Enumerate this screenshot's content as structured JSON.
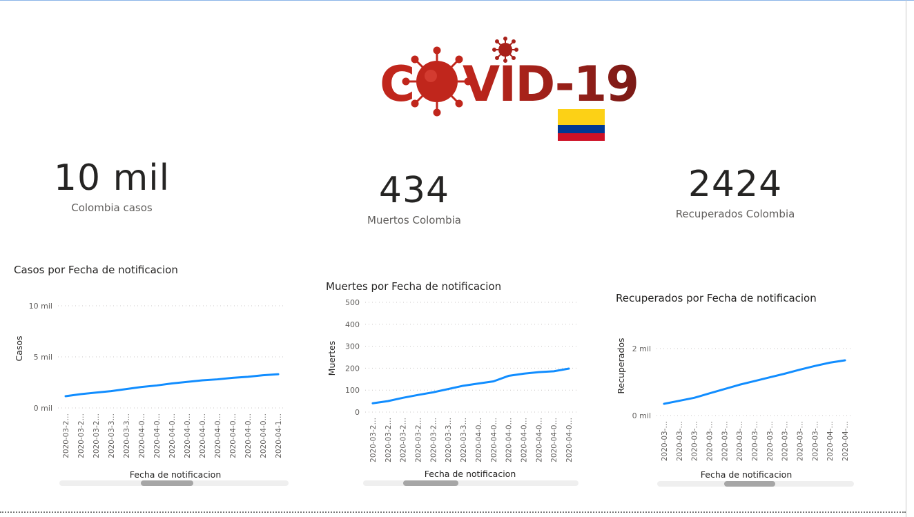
{
  "logo": {
    "text_left": "C",
    "text_right": "VID-19"
  },
  "kpis": [
    {
      "value": "10 mil",
      "label": "Colombia casos"
    },
    {
      "value": "434",
      "label": "Muertos Colombia"
    },
    {
      "value": "2424",
      "label": "Recuperados Colombia"
    }
  ],
  "colors": {
    "line": "#118dff",
    "virus": "#b4231c",
    "flag_yellow": "#fcd116",
    "flag_blue": "#003893",
    "flag_red": "#ce1126"
  },
  "chart_data": [
    {
      "type": "line",
      "title": "Casos por Fecha de notificacion",
      "xlabel": "Fecha de notificacion",
      "ylabel": "Casos",
      "ylim": [
        0,
        10000
      ],
      "yticks": [
        0,
        5000,
        10000
      ],
      "ytick_labels": [
        "0 mil",
        "5 mil",
        "10 mil"
      ],
      "x": [
        "2020-03-2…",
        "2020-03-2…",
        "2020-03-2…",
        "2020-03-3…",
        "2020-03-3…",
        "2020-04-0…",
        "2020-04-0…",
        "2020-04-0…",
        "2020-04-0…",
        "2020-04-0…",
        "2020-04-0…",
        "2020-04-0…",
        "2020-04-0…",
        "2020-04-0…",
        "2020-04-1…"
      ],
      "values": [
        1150,
        1350,
        1500,
        1650,
        1850,
        2050,
        2200,
        2400,
        2550,
        2700,
        2800,
        2950,
        3050,
        3200,
        3300
      ],
      "grid": true
    },
    {
      "type": "line",
      "title": "Muertes por Fecha de notificacion",
      "xlabel": "Fecha de notificacion",
      "ylabel": "Muertes",
      "ylim": [
        0,
        500
      ],
      "yticks": [
        0,
        100,
        200,
        300,
        400,
        500
      ],
      "ytick_labels": [
        "0",
        "100",
        "200",
        "300",
        "400",
        "500"
      ],
      "x": [
        "2020-03-2…",
        "2020-03-2…",
        "2020-03-2…",
        "2020-03-2…",
        "2020-03-2…",
        "2020-03-3…",
        "2020-03-3…",
        "2020-04-0…",
        "2020-04-0…",
        "2020-04-0…",
        "2020-04-0…",
        "2020-04-0…",
        "2020-04-0…",
        "2020-04-0…"
      ],
      "values": [
        40,
        50,
        65,
        78,
        90,
        105,
        120,
        130,
        140,
        165,
        175,
        182,
        186,
        198
      ],
      "grid": true
    },
    {
      "type": "line",
      "title": "Recuperados por Fecha de notificacion",
      "xlabel": "Fecha de notificacion",
      "ylabel": "Recuperados",
      "ylim": [
        0,
        2000
      ],
      "yticks": [
        0,
        2000
      ],
      "ytick_labels": [
        "0 mil",
        "2 mil"
      ],
      "x": [
        "2020-03-…",
        "2020-03-…",
        "2020-03-…",
        "2020-03-…",
        "2020-03-…",
        "2020-03-…",
        "2020-03-…",
        "2020-03-…",
        "2020-03-…",
        "2020-03-…",
        "2020-03-…",
        "2020-04-…",
        "2020-04-…"
      ],
      "values": [
        350,
        440,
        530,
        660,
        790,
        920,
        1030,
        1140,
        1250,
        1370,
        1480,
        1580,
        1650
      ],
      "grid": true
    }
  ]
}
